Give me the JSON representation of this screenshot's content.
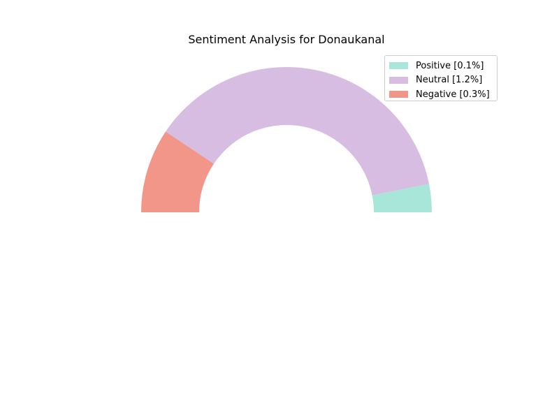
{
  "chart_data": {
    "type": "pie",
    "subtype": "half-donut",
    "title": "Sentiment Analysis for Donaukanal",
    "categories": [
      "Positive",
      "Neutral",
      "Negative"
    ],
    "values": [
      0.1,
      1.2,
      0.3
    ],
    "legend_labels": [
      "Positive [0.1%]",
      "Neutral [1.2%]",
      "Negative [0.3%]"
    ],
    "colors": [
      "#a8e6d9",
      "#d8bde2",
      "#f2968a"
    ],
    "legend_position": "top-right",
    "xlabel": "",
    "ylabel": ""
  }
}
